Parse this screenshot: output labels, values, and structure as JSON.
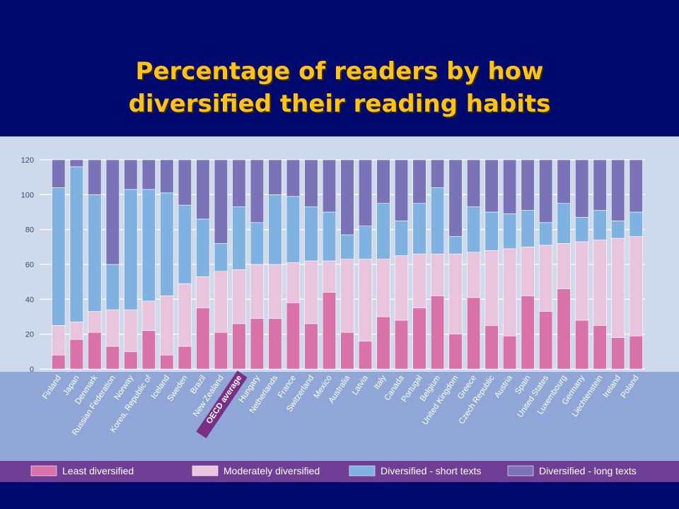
{
  "slide": {
    "title_line1": "Percentage of readers by how",
    "title_line2": "diversified their reading habits"
  },
  "colors": {
    "background": "#000a6e",
    "title": "#ffc21a",
    "panel": "#cfd9ec",
    "label_band": "#8fa6d6",
    "legend_band": "#6e3f95",
    "oecd_highlight": "#7b2e86"
  },
  "chart_data": {
    "type": "bar",
    "stacked": true,
    "title": "",
    "xlabel": "",
    "ylabel": "",
    "ylim": [
      0,
      120
    ],
    "yticks": [
      0,
      20,
      40,
      60,
      80,
      100,
      120
    ],
    "grid": true,
    "legend_position": "bottom",
    "highlight_category": "OECD average",
    "categories": [
      "Finland",
      "Japan",
      "Denmark",
      "Russian Federation",
      "Norway",
      "Korea, Republic of",
      "Iceland",
      "Sweden",
      "Brazil",
      "New Zealand",
      "OECD average",
      "Hungary",
      "Netherlands",
      "France",
      "Switzerland",
      "Mexico",
      "Australia",
      "Latvia",
      "Italy",
      "Canada",
      "Portugal",
      "Belgium",
      "United Kingdom",
      "Greece",
      "Czech Republic",
      "Austria",
      "Spain",
      "United States",
      "Luxembourg",
      "Germany",
      "Liechtenstein",
      "Ireland",
      "Poland"
    ],
    "series": [
      {
        "name": "Least diversified",
        "color": "#d872a8",
        "values": [
          8,
          17,
          21,
          13,
          10,
          22,
          8,
          13,
          35,
          21,
          26,
          29,
          29,
          38,
          26,
          44,
          21,
          16,
          30,
          28,
          35,
          42,
          20,
          41,
          25,
          19,
          42,
          33,
          46,
          28,
          25,
          18,
          19
        ]
      },
      {
        "name": "Moderately diversified",
        "color": "#e8c4dd",
        "values": [
          17,
          10,
          12,
          21,
          24,
          17,
          34,
          36,
          18,
          35,
          31,
          31,
          31,
          23,
          36,
          18,
          42,
          47,
          33,
          37,
          31,
          24,
          46,
          26,
          43,
          50,
          28,
          38,
          26,
          45,
          49,
          57,
          57
        ]
      },
      {
        "name": "Diversified - short texts",
        "color": "#7fb2e0",
        "values": [
          79,
          89,
          67,
          26,
          69,
          64,
          59,
          45,
          33,
          16,
          36,
          24,
          40,
          38,
          31,
          28,
          14,
          19,
          32,
          20,
          29,
          38,
          10,
          26,
          22,
          20,
          21,
          13,
          23,
          14,
          17,
          10,
          14
        ]
      },
      {
        "name": "Diversified - long texts",
        "color": "#7b73b8",
        "values": [
          16,
          4,
          20,
          60,
          17,
          17,
          19,
          26,
          34,
          48,
          27,
          36,
          20,
          21,
          27,
          30,
          43,
          38,
          25,
          35,
          25,
          16,
          44,
          27,
          30,
          31,
          29,
          36,
          25,
          33,
          29,
          35,
          30
        ]
      }
    ]
  }
}
